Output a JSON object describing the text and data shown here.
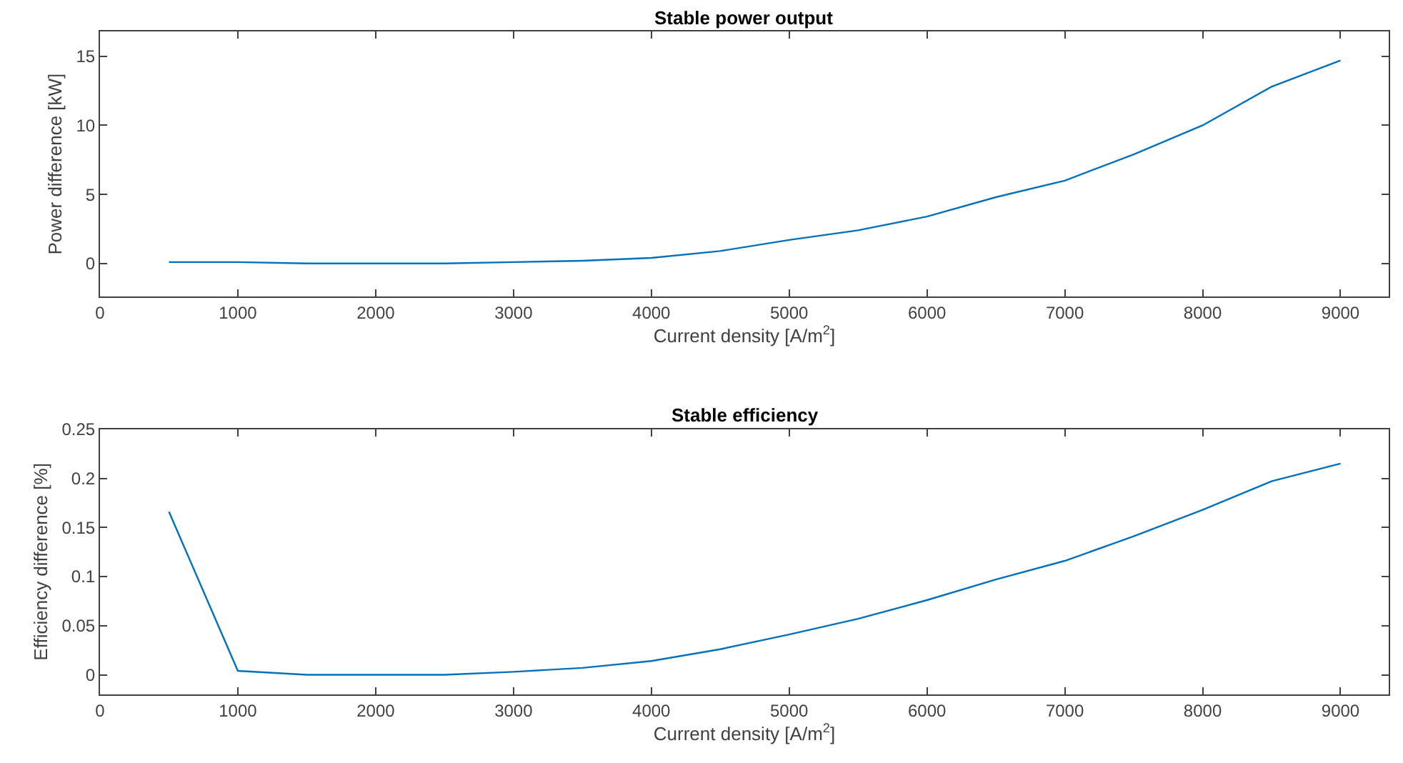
{
  "chart_data": [
    {
      "type": "line",
      "title": "Stable power output",
      "xlabel": "Current density [A/m$^{2}$]",
      "ylabel": "Power difference [kW]",
      "x": [
        500,
        1000,
        1500,
        2000,
        2500,
        3000,
        3500,
        4000,
        4500,
        5000,
        5500,
        6000,
        6500,
        7000,
        7500,
        8000,
        8500,
        9000
      ],
      "series": [
        {
          "color": "#0072bd",
          "values": [
            0.1,
            0.1,
            0,
            0,
            0,
            0.1,
            0.2,
            0.4,
            0.9,
            1.7,
            2.4,
            3.4,
            4.8,
            6,
            7.9,
            10,
            12.8,
            14.7
          ]
        }
      ],
      "xlim": [
        0,
        9350
      ],
      "xticks": [
        0,
        1000,
        2000,
        3000,
        4000,
        5000,
        6000,
        7000,
        8000,
        9000
      ],
      "ylim": [
        -2.4,
        16.8
      ],
      "yticks": [
        0,
        5,
        10,
        15
      ],
      "grid": false,
      "line_style": "solid"
    },
    {
      "type": "line",
      "title": "Stable efficiency",
      "xlabel": "Current density [A/m$^{2}$]",
      "ylabel": "Efficiency difference [%]",
      "x": [
        500,
        1000,
        1500,
        2000,
        2500,
        3000,
        3500,
        4000,
        4500,
        5000,
        5500,
        6000,
        6500,
        7000,
        7500,
        8000,
        8500,
        9000
      ],
      "series": [
        {
          "color": "#0072bd",
          "values": [
            0.166,
            0.004,
            0,
            0,
            0,
            0.003,
            0.007,
            0.014,
            0.026,
            0.041,
            0.057,
            0.076,
            0.097,
            0.116,
            0.141,
            0.168,
            0.197,
            0.215
          ]
        }
      ],
      "xlim": [
        0,
        9350
      ],
      "xticks": [
        0,
        1000,
        2000,
        3000,
        4000,
        5000,
        6000,
        7000,
        8000,
        9000
      ],
      "ylim": [
        -0.02,
        0.25
      ],
      "yticks": [
        0,
        0.05,
        0.1,
        0.15,
        0.2,
        0.25
      ],
      "grid": false,
      "line_style": "solid"
    }
  ]
}
